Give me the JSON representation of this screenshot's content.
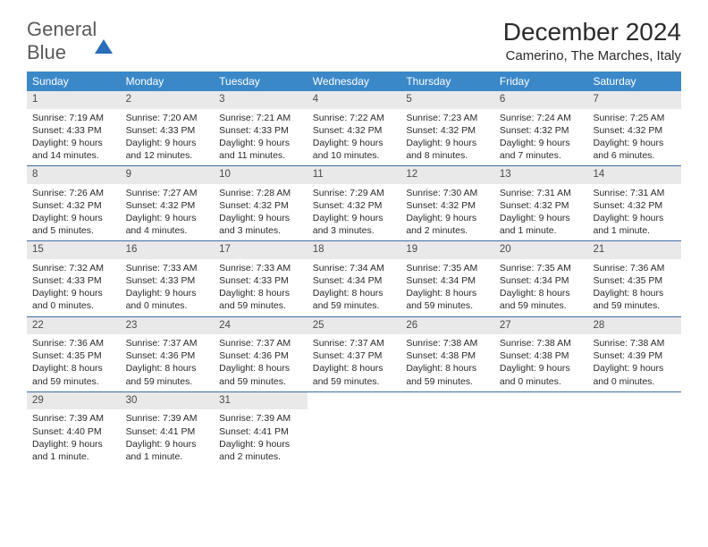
{
  "logo": {
    "first": "General",
    "second": "Blue"
  },
  "title": "December 2024",
  "location": "Camerino, The Marches, Italy",
  "headerBg": "#3b88c9",
  "dayStripBg": "#e9e9e9",
  "ruleColor": "#3b6fa3",
  "dayHeaders": [
    "Sunday",
    "Monday",
    "Tuesday",
    "Wednesday",
    "Thursday",
    "Friday",
    "Saturday"
  ],
  "weeks": [
    [
      {
        "n": "1",
        "sr": "7:19 AM",
        "ss": "4:33 PM",
        "dl": "9 hours and 14 minutes."
      },
      {
        "n": "2",
        "sr": "7:20 AM",
        "ss": "4:33 PM",
        "dl": "9 hours and 12 minutes."
      },
      {
        "n": "3",
        "sr": "7:21 AM",
        "ss": "4:33 PM",
        "dl": "9 hours and 11 minutes."
      },
      {
        "n": "4",
        "sr": "7:22 AM",
        "ss": "4:32 PM",
        "dl": "9 hours and 10 minutes."
      },
      {
        "n": "5",
        "sr": "7:23 AM",
        "ss": "4:32 PM",
        "dl": "9 hours and 8 minutes."
      },
      {
        "n": "6",
        "sr": "7:24 AM",
        "ss": "4:32 PM",
        "dl": "9 hours and 7 minutes."
      },
      {
        "n": "7",
        "sr": "7:25 AM",
        "ss": "4:32 PM",
        "dl": "9 hours and 6 minutes."
      }
    ],
    [
      {
        "n": "8",
        "sr": "7:26 AM",
        "ss": "4:32 PM",
        "dl": "9 hours and 5 minutes."
      },
      {
        "n": "9",
        "sr": "7:27 AM",
        "ss": "4:32 PM",
        "dl": "9 hours and 4 minutes."
      },
      {
        "n": "10",
        "sr": "7:28 AM",
        "ss": "4:32 PM",
        "dl": "9 hours and 3 minutes."
      },
      {
        "n": "11",
        "sr": "7:29 AM",
        "ss": "4:32 PM",
        "dl": "9 hours and 3 minutes."
      },
      {
        "n": "12",
        "sr": "7:30 AM",
        "ss": "4:32 PM",
        "dl": "9 hours and 2 minutes."
      },
      {
        "n": "13",
        "sr": "7:31 AM",
        "ss": "4:32 PM",
        "dl": "9 hours and 1 minute."
      },
      {
        "n": "14",
        "sr": "7:31 AM",
        "ss": "4:32 PM",
        "dl": "9 hours and 1 minute."
      }
    ],
    [
      {
        "n": "15",
        "sr": "7:32 AM",
        "ss": "4:33 PM",
        "dl": "9 hours and 0 minutes."
      },
      {
        "n": "16",
        "sr": "7:33 AM",
        "ss": "4:33 PM",
        "dl": "9 hours and 0 minutes."
      },
      {
        "n": "17",
        "sr": "7:33 AM",
        "ss": "4:33 PM",
        "dl": "8 hours and 59 minutes."
      },
      {
        "n": "18",
        "sr": "7:34 AM",
        "ss": "4:34 PM",
        "dl": "8 hours and 59 minutes."
      },
      {
        "n": "19",
        "sr": "7:35 AM",
        "ss": "4:34 PM",
        "dl": "8 hours and 59 minutes."
      },
      {
        "n": "20",
        "sr": "7:35 AM",
        "ss": "4:34 PM",
        "dl": "8 hours and 59 minutes."
      },
      {
        "n": "21",
        "sr": "7:36 AM",
        "ss": "4:35 PM",
        "dl": "8 hours and 59 minutes."
      }
    ],
    [
      {
        "n": "22",
        "sr": "7:36 AM",
        "ss": "4:35 PM",
        "dl": "8 hours and 59 minutes."
      },
      {
        "n": "23",
        "sr": "7:37 AM",
        "ss": "4:36 PM",
        "dl": "8 hours and 59 minutes."
      },
      {
        "n": "24",
        "sr": "7:37 AM",
        "ss": "4:36 PM",
        "dl": "8 hours and 59 minutes."
      },
      {
        "n": "25",
        "sr": "7:37 AM",
        "ss": "4:37 PM",
        "dl": "8 hours and 59 minutes."
      },
      {
        "n": "26",
        "sr": "7:38 AM",
        "ss": "4:38 PM",
        "dl": "8 hours and 59 minutes."
      },
      {
        "n": "27",
        "sr": "7:38 AM",
        "ss": "4:38 PM",
        "dl": "9 hours and 0 minutes."
      },
      {
        "n": "28",
        "sr": "7:38 AM",
        "ss": "4:39 PM",
        "dl": "9 hours and 0 minutes."
      }
    ],
    [
      {
        "n": "29",
        "sr": "7:39 AM",
        "ss": "4:40 PM",
        "dl": "9 hours and 1 minute."
      },
      {
        "n": "30",
        "sr": "7:39 AM",
        "ss": "4:41 PM",
        "dl": "9 hours and 1 minute."
      },
      {
        "n": "31",
        "sr": "7:39 AM",
        "ss": "4:41 PM",
        "dl": "9 hours and 2 minutes."
      },
      null,
      null,
      null,
      null
    ]
  ],
  "labels": {
    "sunrise": "Sunrise:",
    "sunset": "Sunset:",
    "daylight": "Daylight:"
  }
}
